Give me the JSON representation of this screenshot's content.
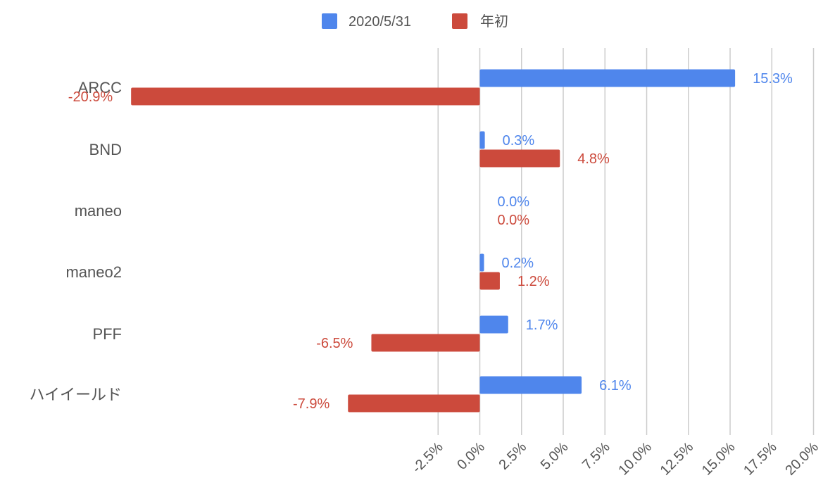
{
  "chart_data": {
    "type": "bar",
    "orientation": "horizontal",
    "categories": [
      "ARCC",
      "BND",
      "maneo",
      "maneo2",
      "PFF",
      "ハイイールド"
    ],
    "series": [
      {
        "name": "2020/5/31",
        "color": "#4f86ec",
        "values": [
          15.3,
          0.3,
          0.0,
          0.2,
          1.7,
          6.1
        ],
        "labels": [
          "15.3%",
          "0.3%",
          "0.0%",
          "0.2%",
          "1.7%",
          "6.1%"
        ]
      },
      {
        "name": "年初",
        "color": "#cc4a3c",
        "values": [
          -20.9,
          4.8,
          0.0,
          1.2,
          -6.5,
          -7.9
        ],
        "labels": [
          "-20.9%",
          "4.8%",
          "0.0%",
          "1.2%",
          "-6.5%",
          "-7.9%"
        ]
      }
    ],
    "xticks": [
      -2.5,
      0.0,
      2.5,
      5.0,
      7.5,
      10.0,
      12.5,
      15.0,
      17.5,
      20.0
    ],
    "xtick_labels": [
      "-2.5%",
      "0.0%",
      "2.5%",
      "5.0%",
      "7.5%",
      "10.0%",
      "12.5%",
      "15.0%",
      "17.5%",
      "20.0%"
    ],
    "xlim": [
      -20.9,
      20.0
    ],
    "grid": true,
    "legend_position": "top-center"
  }
}
